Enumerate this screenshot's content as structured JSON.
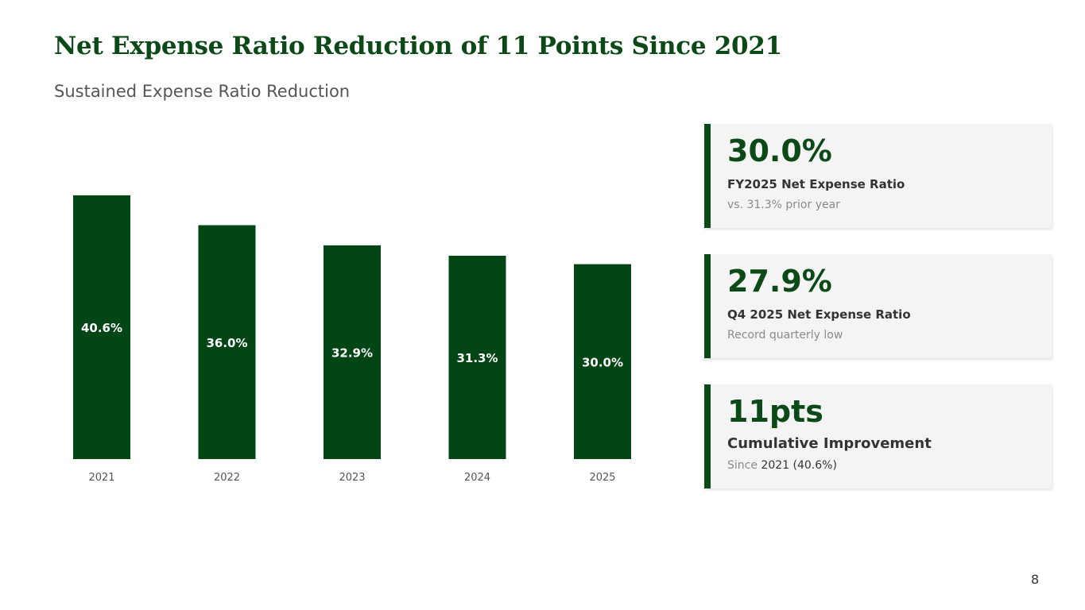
{
  "header": {
    "title": "Net Expense Ratio Reduction of 11 Points Since 2021",
    "subtitle": "Sustained Expense Ratio Reduction"
  },
  "chart_data": {
    "type": "bar",
    "categories": [
      "2021",
      "2022",
      "2023",
      "2024",
      "2025"
    ],
    "values": [
      40.6,
      36.0,
      32.9,
      31.3,
      30.0
    ],
    "value_labels": [
      "40.6%",
      "36.0%",
      "32.9%",
      "31.3%",
      "30.0%"
    ],
    "color": "#034616"
  },
  "cards": [
    {
      "value": "30.0%",
      "label": "FY2025 Net Expense Ratio",
      "note": "vs. 31.3% prior year"
    },
    {
      "value": "27.9%",
      "label": "Q4 2025 Net Expense Ratio",
      "note": "Record quarterly low"
    },
    {
      "value": "11pts",
      "label": "Cumulative Improvement",
      "note": "Since",
      "note_emphasis": "2021 (40.6%)"
    }
  ],
  "page_number": "8"
}
